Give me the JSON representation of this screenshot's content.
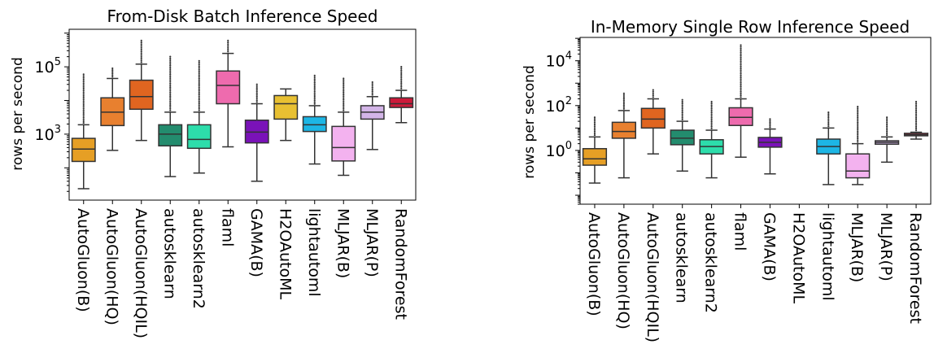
{
  "chart_data": [
    {
      "type": "box",
      "title": "From-Disk Batch Inference Speed",
      "ylabel": "rows per second",
      "xlabel": "",
      "yscale": "log",
      "ylim": [
        11,
        1300000
      ],
      "yticks": [
        {
          "base": "10",
          "exp": "3",
          "value": 1000
        },
        {
          "base": "10",
          "exp": "5",
          "value": 100000
        }
      ],
      "grid": false,
      "categories": [
        "AutoGluon(B)",
        "AutoGluon(HQ)",
        "AutoGluon(HQIL)",
        "autosklearn",
        "autosklearn2",
        "flaml",
        "GAMA(B)",
        "H2OAutoML",
        "lightautoml",
        "MLJAR(B)",
        "MLJAR(P)",
        "RandomForest"
      ],
      "colors": [
        "#E69F25",
        "#E8802F",
        "#E06520",
        "#238C6E",
        "#2DDDAB",
        "#EE6BAE",
        "#7A12B8",
        "#E8C032",
        "#1DB6E5",
        "#F3B2EF",
        "#D3B5E8",
        "#CC1A3A"
      ],
      "boxes": [
        {
          "whislo": 24,
          "q1": 155,
          "med": 360,
          "q3": 750,
          "whishi": 1900,
          "fliers_max": 60000
        },
        {
          "whislo": 330,
          "q1": 1800,
          "med": 4500,
          "q3": 12000,
          "whishi": 45000,
          "fliers_max": 90000
        },
        {
          "whislo": 650,
          "q1": 5500,
          "med": 13000,
          "q3": 40000,
          "whishi": 120000,
          "fliers_max": 600000
        },
        {
          "whislo": 55,
          "q1": 450,
          "med": 1000,
          "q3": 1900,
          "whishi": 4500,
          "fliers_max": 200000
        },
        {
          "whislo": 70,
          "q1": 380,
          "med": 700,
          "q3": 1900,
          "whishi": 4500,
          "fliers_max": 150000
        },
        {
          "whislo": 420,
          "q1": 8000,
          "med": 28000,
          "q3": 75000,
          "whishi": 250000,
          "fliers_max": 600000
        },
        {
          "whislo": 40,
          "q1": 550,
          "med": 1150,
          "q3": 2600,
          "whishi": 8000,
          "fliers_max": 30000
        },
        {
          "whislo": 650,
          "q1": 2800,
          "med": 8000,
          "q3": 14000,
          "whishi": 22000,
          "fliers_max": null
        },
        {
          "whislo": 130,
          "q1": 1200,
          "med": 1900,
          "q3": 3300,
          "whishi": 7000,
          "fliers_max": 55000
        },
        {
          "whislo": 60,
          "q1": 160,
          "med": 400,
          "q3": 1700,
          "whishi": 4500,
          "fliers_max": 45000
        },
        {
          "whislo": 350,
          "q1": 2800,
          "med": 4500,
          "q3": 7000,
          "whishi": 13000,
          "fliers_max": 35000
        },
        {
          "whislo": 2200,
          "q1": 6200,
          "med": 8000,
          "q3": 12000,
          "whishi": 20000,
          "fliers_max": 100000
        }
      ]
    },
    {
      "type": "box",
      "title": "In-Memory Single Row Inference Speed",
      "ylabel": "rows per second",
      "xlabel": "",
      "yscale": "log",
      "ylim": [
        0.004,
        110000
      ],
      "yticks": [
        {
          "base": "10",
          "exp": "0",
          "value": 1
        },
        {
          "base": "10",
          "exp": "2",
          "value": 100
        },
        {
          "base": "10",
          "exp": "4",
          "value": 10000
        }
      ],
      "grid": false,
      "categories": [
        "AutoGluon(B)",
        "AutoGluon(HQ)",
        "AutoGluon(HQIL)",
        "autosklearn",
        "autosklearn2",
        "flaml",
        "GAMA(B)",
        "H2OAutoML",
        "lightautoml",
        "MLJAR(B)",
        "MLJAR(P)",
        "RandomForest"
      ],
      "colors": [
        "#E69F25",
        "#E8802F",
        "#E06520",
        "#238C6E",
        "#2DDDAB",
        "#EE6BAE",
        "#7A12B8",
        "#E8C032",
        "#1DB6E5",
        "#F3B2EF",
        "#D3B5E8",
        "#CC1A3A"
      ],
      "boxes": [
        {
          "whislo": 0.035,
          "q1": 0.22,
          "med": 0.42,
          "q3": 1.2,
          "whishi": 4,
          "fliers_max": 30
        },
        {
          "whislo": 0.06,
          "q1": 3.5,
          "med": 7,
          "q3": 18,
          "whishi": 60,
          "fliers_max": 350
        },
        {
          "whislo": 0.7,
          "q1": 10,
          "med": 25,
          "q3": 75,
          "whishi": 200,
          "fliers_max": 500
        },
        {
          "whislo": 0.12,
          "q1": 1.8,
          "med": 3.5,
          "q3": 8,
          "whishi": 20,
          "fliers_max": 180
        },
        {
          "whislo": 0.06,
          "q1": 0.7,
          "med": 1.5,
          "q3": 3,
          "whishi": 8,
          "fliers_max": 150
        },
        {
          "whislo": 0.5,
          "q1": 13,
          "med": 30,
          "q3": 80,
          "whishi": 200,
          "fliers_max": 50000
        },
        {
          "whislo": 0.09,
          "q1": 1.4,
          "med": 2.3,
          "q3": 3.8,
          "whishi": 9,
          "fliers_max": 25
        },
        null,
        {
          "whislo": 0.03,
          "q1": 0.7,
          "med": 1.5,
          "q3": 3.2,
          "whishi": 10,
          "fliers_max": 50
        },
        {
          "whislo": 0.03,
          "q1": 0.06,
          "med": 0.12,
          "q3": 0.7,
          "whishi": 2,
          "fliers_max": 90
        },
        {
          "whislo": 0.3,
          "q1": 1.9,
          "med": 2.3,
          "q3": 2.7,
          "whishi": 4,
          "fliers_max": 30
        },
        {
          "whislo": 3.2,
          "q1": 4.5,
          "med": 5,
          "q3": 5.8,
          "whishi": 6.5,
          "fliers_max": 150
        }
      ]
    }
  ]
}
